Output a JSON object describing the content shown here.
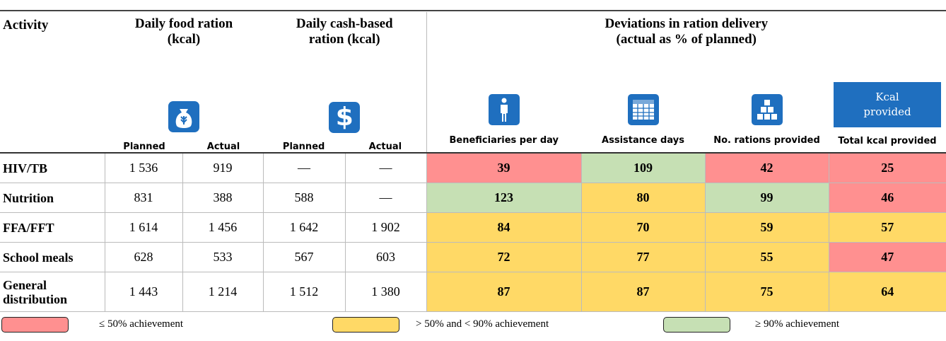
{
  "header": {
    "activity": "Activity",
    "food_ration": [
      "Daily food ration",
      "(kcal)"
    ],
    "cash_ration": [
      "Daily cash-based",
      "ration (kcal)"
    ],
    "deviations": [
      "Deviations in ration delivery",
      "(actual as % of planned)"
    ],
    "kcal_box": [
      "Kcal",
      "provided"
    ],
    "cash_symbol": "$",
    "subheaders": [
      "Planned",
      "Actual",
      "Planned",
      "Actual",
      "Beneficiaries per day",
      "Assistance days",
      "No. rations provided",
      "Total kcal provided"
    ]
  },
  "rows": [
    {
      "activity": "HIV/TB",
      "food": [
        "1 536",
        "919"
      ],
      "cash": [
        "—",
        "—"
      ],
      "deviations": [
        39,
        109,
        42,
        25
      ],
      "levels": [
        0,
        2,
        0,
        0
      ]
    },
    {
      "activity": "Nutrition",
      "food": [
        "831",
        "388"
      ],
      "cash": [
        "588",
        "—"
      ],
      "deviations": [
        123,
        80,
        99,
        46
      ],
      "levels": [
        2,
        1,
        2,
        0
      ]
    },
    {
      "activity": "FFA/FFT",
      "food": [
        "1 614",
        "1 456"
      ],
      "cash": [
        "1 642",
        "1 902"
      ],
      "deviations": [
        84,
        70,
        59,
        57
      ],
      "levels": [
        1,
        1,
        1,
        1
      ]
    },
    {
      "activity": "School meals",
      "food": [
        "628",
        "533"
      ],
      "cash": [
        "567",
        "603"
      ],
      "deviations": [
        72,
        77,
        55,
        47
      ],
      "levels": [
        1,
        1,
        1,
        0
      ]
    },
    {
      "activity": "General distribution",
      "food": [
        "1 443",
        "1 214"
      ],
      "cash": [
        "1 512",
        "1 380"
      ],
      "deviations": [
        87,
        87,
        75,
        64
      ],
      "levels": [
        1,
        1,
        1,
        1
      ]
    }
  ],
  "legend": [
    {
      "label": "≤ 50% achievement",
      "color": "#ff9090"
    },
    {
      "label": "> 50% and < 90% achievement",
      "color": "#ffd966"
    },
    {
      "label": "≥ 90% achievement",
      "color": "#c6e0b4"
    }
  ]
}
